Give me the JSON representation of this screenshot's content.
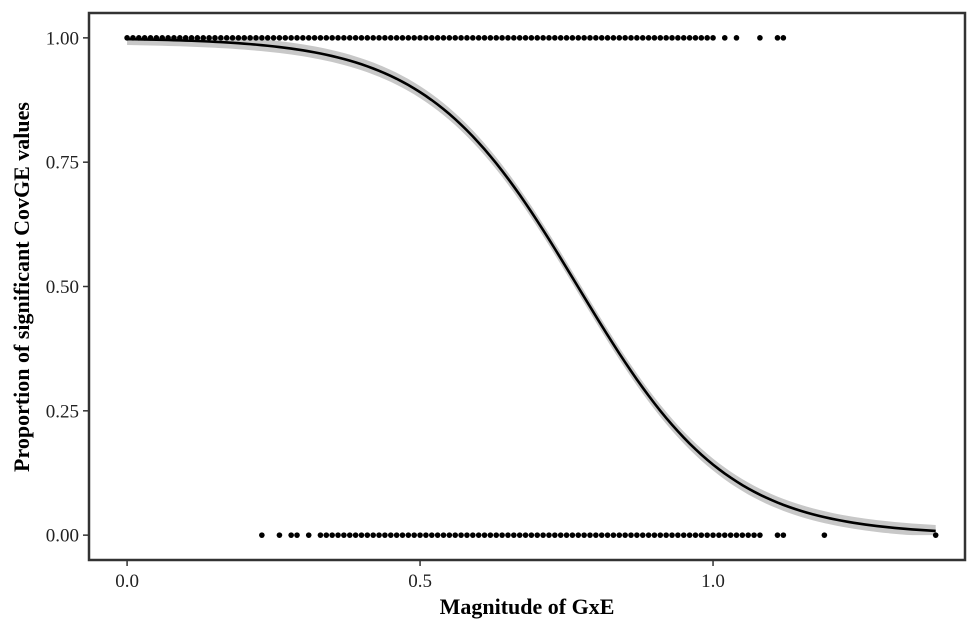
{
  "chart_data": {
    "type": "scatter",
    "xlabel": "Magnitude of GxE",
    "ylabel": "Proportion of significant CovGE values",
    "xlim": [
      -0.065,
      1.43
    ],
    "ylim": [
      -0.05,
      1.05
    ],
    "x_ticks": [
      0.0,
      0.5,
      1.0
    ],
    "x_tick_labels": [
      "0.0",
      "0.5",
      "1.0"
    ],
    "y_ticks": [
      0.0,
      0.25,
      0.5,
      0.75,
      1.0
    ],
    "y_tick_labels": [
      "0.00",
      "0.25",
      "0.50",
      "0.75",
      "1.00"
    ],
    "grid": false,
    "legend": "none",
    "colors": {
      "points": "#000000",
      "curve": "#000000",
      "ribbon": "#c8c8c8",
      "frame": "#333333"
    },
    "points_y1": {
      "y": 1,
      "dense_from": 0.0,
      "dense_to": 1.0,
      "dense_step": 0.01,
      "extra_x": [
        1.02,
        1.04,
        1.08,
        1.11,
        1.12
      ]
    },
    "points_y0": {
      "y": 0,
      "sparse_x": [
        0.23,
        0.26,
        0.28,
        0.29,
        0.31
      ],
      "dense_from": 0.33,
      "dense_to": 1.08,
      "dense_step": 0.01,
      "extra_x": [
        1.11,
        1.12,
        1.19,
        1.38
      ]
    },
    "fit": {
      "model": "logistic",
      "intercept": 6.0,
      "slope": -7.8,
      "x_range": [
        0.0,
        1.38
      ],
      "ci_halfwidth": 0.012
    }
  }
}
